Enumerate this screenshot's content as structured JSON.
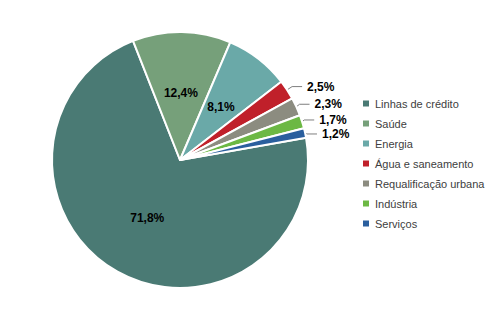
{
  "chart_data": {
    "type": "pie",
    "categories": [
      "Linhas de crédito",
      "Saúde",
      "Energia",
      "Água e saneamento",
      "Requalificação urbana",
      "Indústria",
      "Serviços"
    ],
    "values": [
      71.8,
      12.4,
      8.1,
      2.5,
      2.3,
      1.7,
      1.2
    ],
    "value_labels": [
      "71,8%",
      "12,4%",
      "8,1%",
      "2,5%",
      "2,3%",
      "1,7%",
      "1,2%"
    ],
    "colors": [
      "#4a7a74",
      "#76a07a",
      "#6aa9a8",
      "#c0202a",
      "#8c8c80",
      "#6cb844",
      "#2a5f9e"
    ],
    "data_labels": true,
    "legend": "right"
  }
}
